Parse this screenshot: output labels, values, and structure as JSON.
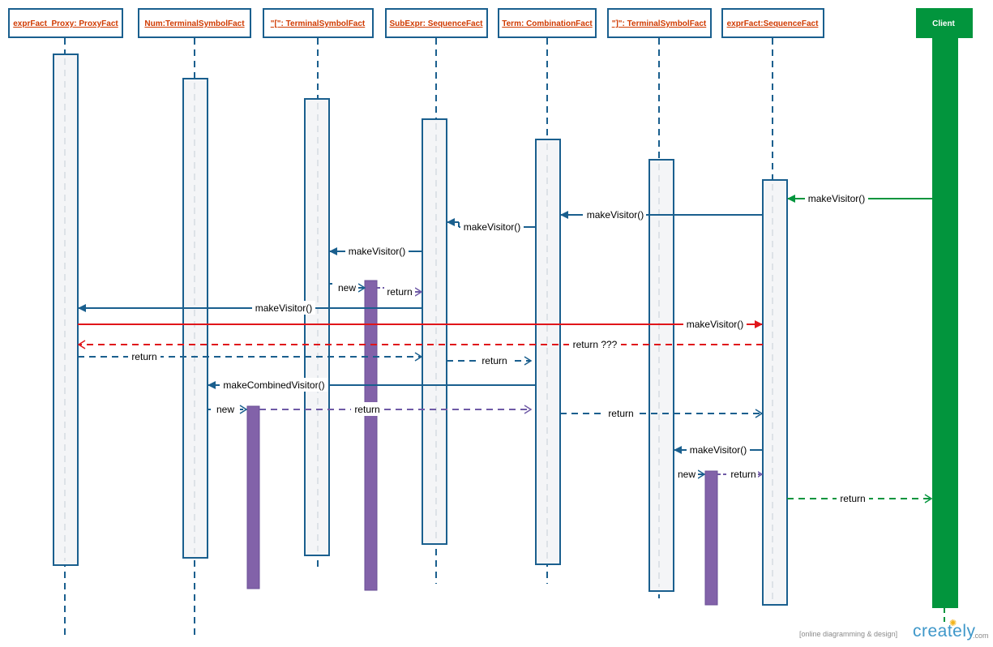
{
  "diagram": {
    "lifelines": [
      {
        "id": "proxy",
        "label": "exprFact_Proxy: ProxyFact"
      },
      {
        "id": "num",
        "label": "Num:TerminalSymbolFact"
      },
      {
        "id": "lparen",
        "label": "\"[\": TerminalSymbolFact"
      },
      {
        "id": "subexpr",
        "label": "SubExpr: SequenceFact"
      },
      {
        "id": "term",
        "label": "Term: CombinationFact"
      },
      {
        "id": "rparen",
        "label": "\"]\": TerminalSymbolFact"
      },
      {
        "id": "expr",
        "label": "exprFact:SequenceFact"
      },
      {
        "id": "client",
        "label": "Client"
      }
    ],
    "messages": [
      {
        "label": "makeVisitor()",
        "from": "client",
        "to": "expr",
        "kind": "call"
      },
      {
        "label": "makeVisitor()",
        "from": "expr",
        "to": "term",
        "kind": "call"
      },
      {
        "label": "makeVisitor()",
        "from": "term",
        "to": "subexpr",
        "kind": "call"
      },
      {
        "label": "makeVisitor()",
        "from": "subexpr",
        "to": "lparen",
        "kind": "call"
      },
      {
        "label": "new",
        "from": "lparen",
        "to": "visitor1",
        "kind": "create"
      },
      {
        "label": "return",
        "from": "visitor1",
        "to": "subexpr",
        "kind": "return"
      },
      {
        "label": "makeVisitor()",
        "from": "subexpr",
        "to": "proxy",
        "kind": "call"
      },
      {
        "label": "makeVisitor()",
        "from": "proxy",
        "to": "expr",
        "kind": "call-red"
      },
      {
        "label": "return ???",
        "from": "expr",
        "to": "proxy",
        "kind": "return-red"
      },
      {
        "label": "return",
        "from": "proxy",
        "to": "subexpr",
        "kind": "return"
      },
      {
        "label": "return",
        "from": "subexpr",
        "to": "term",
        "kind": "return"
      },
      {
        "label": "makeCombinedVisitor()",
        "from": "term",
        "to": "num",
        "kind": "call"
      },
      {
        "label": "new",
        "from": "num",
        "to": "visitor2",
        "kind": "create"
      },
      {
        "label": "return",
        "from": "visitor2",
        "to": "term",
        "kind": "return"
      },
      {
        "label": "return",
        "from": "term",
        "to": "expr",
        "kind": "return"
      },
      {
        "label": "makeVisitor()",
        "from": "expr",
        "to": "rparen",
        "kind": "call"
      },
      {
        "label": "new",
        "from": "rparen",
        "to": "visitor3",
        "kind": "create"
      },
      {
        "label": "return",
        "from": "visitor3",
        "to": "expr",
        "kind": "return"
      },
      {
        "label": "return",
        "from": "expr",
        "to": "client",
        "kind": "return-green"
      }
    ]
  },
  "colors": {
    "lifeline": "#1a5f8e",
    "activation_fill": "#f4f5f7",
    "visitor_purple": "#8262a9",
    "return_purple": "#6f5aa6",
    "red": "#e0151a",
    "client_green": "#02953d",
    "heading_text": "#d03a00"
  },
  "watermark": {
    "tagline": "[online diagramming & design]",
    "brand": "creately",
    "suffix": ".com"
  }
}
